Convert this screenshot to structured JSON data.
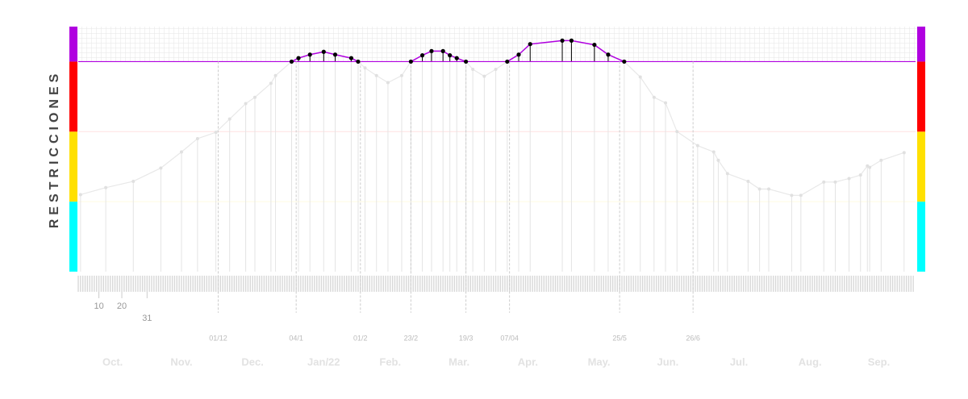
{
  "chart_data": {
    "type": "line",
    "y_label": "RESTRICCIONES",
    "x": [
      2,
      13,
      25,
      37,
      46,
      53,
      61,
      67,
      74,
      78,
      85,
      87,
      94,
      97,
      102,
      108,
      113,
      120,
      123,
      126,
      131,
      136,
      142,
      146,
      151,
      155,
      160,
      163,
      166,
      170,
      173,
      178,
      183,
      188,
      193,
      198,
      212,
      216,
      226,
      232,
      239,
      246,
      252,
      257,
      262,
      271,
      278,
      280,
      284,
      293,
      298,
      302,
      312,
      316,
      326,
      331,
      337,
      342,
      345,
      346,
      351,
      361
    ],
    "values": [
      1.1,
      1.2,
      1.29,
      1.48,
      1.71,
      1.9,
      1.99,
      2.18,
      2.4,
      2.49,
      2.69,
      2.8,
      3.0,
      3.05,
      3.1,
      3.14,
      3.1,
      3.05,
      3.0,
      2.91,
      2.8,
      2.7,
      2.8,
      3.0,
      3.09,
      3.15,
      3.15,
      3.09,
      3.05,
      3.0,
      2.89,
      2.79,
      2.89,
      3.0,
      3.1,
      3.25,
      3.3,
      3.3,
      3.24,
      3.1,
      3.0,
      2.78,
      2.49,
      2.41,
      2.0,
      1.8,
      1.71,
      1.59,
      1.4,
      1.29,
      1.18,
      1.18,
      1.09,
      1.09,
      1.28,
      1.28,
      1.33,
      1.38,
      1.51,
      1.49,
      1.59,
      1.7
    ],
    "xlim": [
      1,
      366
    ],
    "ylim": [
      0,
      3.5
    ],
    "threshold": 3,
    "line_color": "#e8e8e8",
    "highlight_color": "#b000e0",
    "bands": [
      {
        "from": 0,
        "to": 1,
        "color": "#00ffff"
      },
      {
        "from": 1,
        "to": 2,
        "color": "#ffe000"
      },
      {
        "from": 2,
        "to": 3,
        "color": "#ff0000"
      },
      {
        "from": 3,
        "to": 3.5,
        "color": "#b000e0"
      }
    ],
    "day_ticks": [
      10,
      20,
      31
    ],
    "xticks": [
      {
        "value": 62,
        "label": "01/12"
      },
      {
        "value": 96,
        "label": "04/1"
      },
      {
        "value": 124,
        "label": "01/2"
      },
      {
        "value": 146,
        "label": "23/2"
      },
      {
        "value": 170,
        "label": "19/3"
      },
      {
        "value": 189,
        "label": "07/04"
      },
      {
        "value": 237,
        "label": "25/5"
      },
      {
        "value": 269,
        "label": "26/6"
      }
    ],
    "month_ticks": [
      {
        "value": 16,
        "label": "Oct."
      },
      {
        "value": 46,
        "label": "Nov."
      },
      {
        "value": 77,
        "label": "Dec."
      },
      {
        "value": 108,
        "label": "Jan/22"
      },
      {
        "value": 137,
        "label": "Feb."
      },
      {
        "value": 167,
        "label": "Mar."
      },
      {
        "value": 197,
        "label": "Apr."
      },
      {
        "value": 228,
        "label": "May."
      },
      {
        "value": 258,
        "label": "Jun."
      },
      {
        "value": 289,
        "label": "Jul."
      },
      {
        "value": 320,
        "label": "Aug."
      },
      {
        "value": 350,
        "label": "Sep."
      }
    ]
  }
}
